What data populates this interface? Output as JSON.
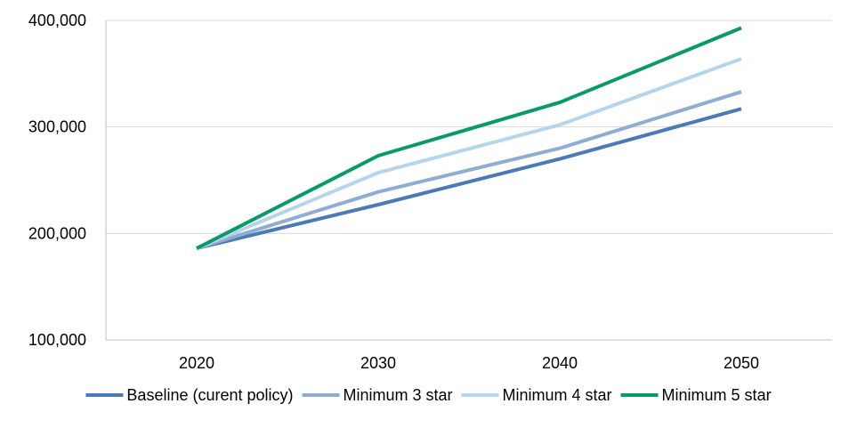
{
  "chart_data": {
    "type": "line",
    "title": "",
    "xlabel": "",
    "ylabel": "",
    "categories": [
      "2020",
      "2030",
      "2040",
      "2050"
    ],
    "ylim": [
      100000,
      400000
    ],
    "yticks": [
      100000,
      200000,
      300000,
      400000
    ],
    "ytick_labels": [
      "100,000",
      "200,000",
      "300,000",
      "400,000"
    ],
    "grid": "horizontal",
    "legend_position": "bottom",
    "series": [
      {
        "name": "Baseline (curent policy)",
        "color": "#4a7ab8",
        "values": [
          186000,
          227000,
          270000,
          317000
        ]
      },
      {
        "name": "Minimum 3 star",
        "color": "#8eacd4",
        "values": [
          186000,
          239000,
          280000,
          333000
        ]
      },
      {
        "name": "Minimum 4 star",
        "color": "#b5d5ec",
        "values": [
          186000,
          257000,
          302000,
          364000
        ]
      },
      {
        "name": "Minimum 5 star",
        "color": "#0a9a6a",
        "values": [
          186000,
          273000,
          323000,
          393000
        ]
      }
    ]
  }
}
